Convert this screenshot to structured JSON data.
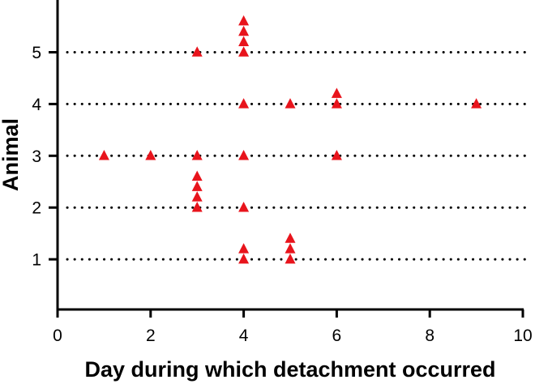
{
  "chart_data": {
    "type": "scatter",
    "xlabel": "Day during which detachment occurred",
    "ylabel": "Animal",
    "xlim": [
      0,
      10
    ],
    "ylim": [
      0,
      5.8
    ],
    "x_ticks": [
      0,
      2,
      4,
      6,
      8,
      10
    ],
    "y_ticks": [
      1,
      2,
      3,
      4,
      5
    ],
    "reference_lines_y": [
      1,
      2,
      3,
      4,
      5
    ],
    "reference_line_style": "dotted",
    "marker": "triangle",
    "marker_color": "#e8141c",
    "series": [
      {
        "points": [
          {
            "x": 4,
            "y": 1
          },
          {
            "x": 4,
            "y": 1.2
          },
          {
            "x": 5,
            "y": 1
          },
          {
            "x": 5,
            "y": 1.2
          },
          {
            "x": 5,
            "y": 1.4
          },
          {
            "x": 3,
            "y": 2
          },
          {
            "x": 3,
            "y": 2.2
          },
          {
            "x": 3,
            "y": 2.4
          },
          {
            "x": 3,
            "y": 2.6
          },
          {
            "x": 4,
            "y": 2
          },
          {
            "x": 1,
            "y": 3
          },
          {
            "x": 2,
            "y": 3
          },
          {
            "x": 3,
            "y": 3
          },
          {
            "x": 4,
            "y": 3
          },
          {
            "x": 6,
            "y": 3
          },
          {
            "x": 4,
            "y": 4
          },
          {
            "x": 5,
            "y": 4
          },
          {
            "x": 6,
            "y": 4
          },
          {
            "x": 6,
            "y": 4.2
          },
          {
            "x": 9,
            "y": 4
          },
          {
            "x": 3,
            "y": 5
          },
          {
            "x": 4,
            "y": 5
          },
          {
            "x": 4,
            "y": 5.2
          },
          {
            "x": 4,
            "y": 5.4
          },
          {
            "x": 4,
            "y": 5.6
          }
        ]
      }
    ]
  }
}
